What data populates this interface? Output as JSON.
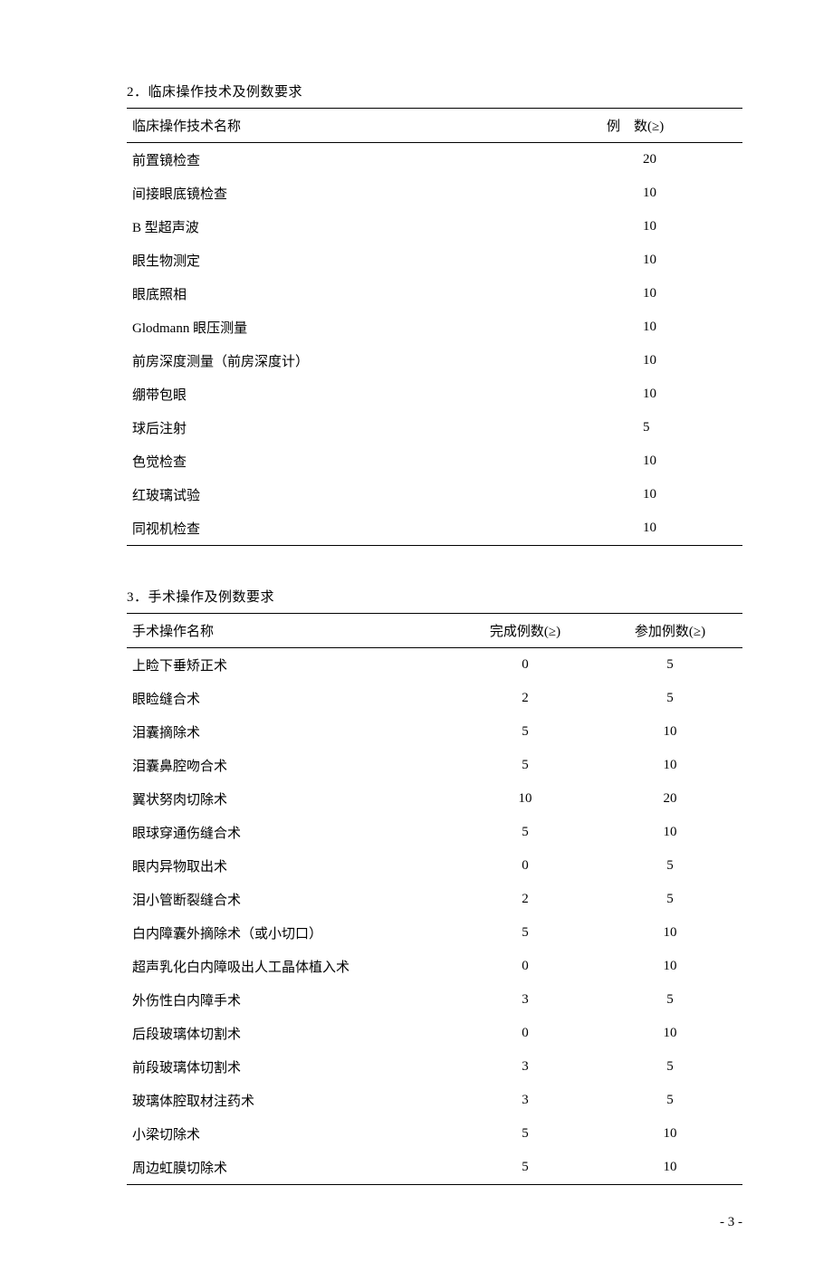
{
  "section2": {
    "title": "2．临床操作技术及例数要求",
    "headers": {
      "name": "临床操作技术名称",
      "count": "例　数(≥)"
    },
    "rows": [
      {
        "name": "前置镜检查",
        "count": "20"
      },
      {
        "name": "间接眼底镜检查",
        "count": "10"
      },
      {
        "name": "B 型超声波",
        "count": "10"
      },
      {
        "name": "眼生物测定",
        "count": "10"
      },
      {
        "name": "眼底照相",
        "count": "10"
      },
      {
        "name": "Glodmann 眼压测量",
        "count": "10"
      },
      {
        "name": "前房深度测量（前房深度计）",
        "count": "10"
      },
      {
        "name": "绷带包眼",
        "count": "10"
      },
      {
        "name": "球后注射",
        "count": "5"
      },
      {
        "name": "色觉检查",
        "count": "10"
      },
      {
        "name": "红玻璃试验",
        "count": "10"
      },
      {
        "name": "同视机检查",
        "count": "10"
      }
    ]
  },
  "section3": {
    "title": "3．手术操作及例数要求",
    "headers": {
      "name": "手术操作名称",
      "complete": "完成例数(≥)",
      "participate": "参加例数(≥)"
    },
    "rows": [
      {
        "name": "上睑下垂矫正术",
        "complete": "0",
        "participate": "5"
      },
      {
        "name": "眼睑缝合术",
        "complete": "2",
        "participate": "5"
      },
      {
        "name": "泪囊摘除术",
        "complete": "5",
        "participate": "10"
      },
      {
        "name": "泪囊鼻腔吻合术",
        "complete": "5",
        "participate": "10"
      },
      {
        "name": "翼状努肉切除术",
        "complete": "10",
        "participate": "20"
      },
      {
        "name": "眼球穿通伤缝合术",
        "complete": "5",
        "participate": "10"
      },
      {
        "name": "眼内异物取出术",
        "complete": "0",
        "participate": "5"
      },
      {
        "name": "泪小管断裂缝合术",
        "complete": "2",
        "participate": "5"
      },
      {
        "name": "白内障囊外摘除术（或小切口）",
        "complete": "5",
        "participate": "10"
      },
      {
        "name": "超声乳化白内障吸出人工晶体植入术",
        "complete": "0",
        "participate": "10"
      },
      {
        "name": "外伤性白内障手术",
        "complete": "3",
        "participate": "5"
      },
      {
        "name": "后段玻璃体切割术",
        "complete": "0",
        "participate": "10"
      },
      {
        "name": "前段玻璃体切割术",
        "complete": "3",
        "participate": "5"
      },
      {
        "name": "玻璃体腔取材注药术",
        "complete": "3",
        "participate": "5"
      },
      {
        "name": "小梁切除术",
        "complete": "5",
        "participate": "10"
      },
      {
        "name": "周边虹膜切除术",
        "complete": "5",
        "participate": "10"
      }
    ]
  },
  "pageNumber": "- 3 -"
}
